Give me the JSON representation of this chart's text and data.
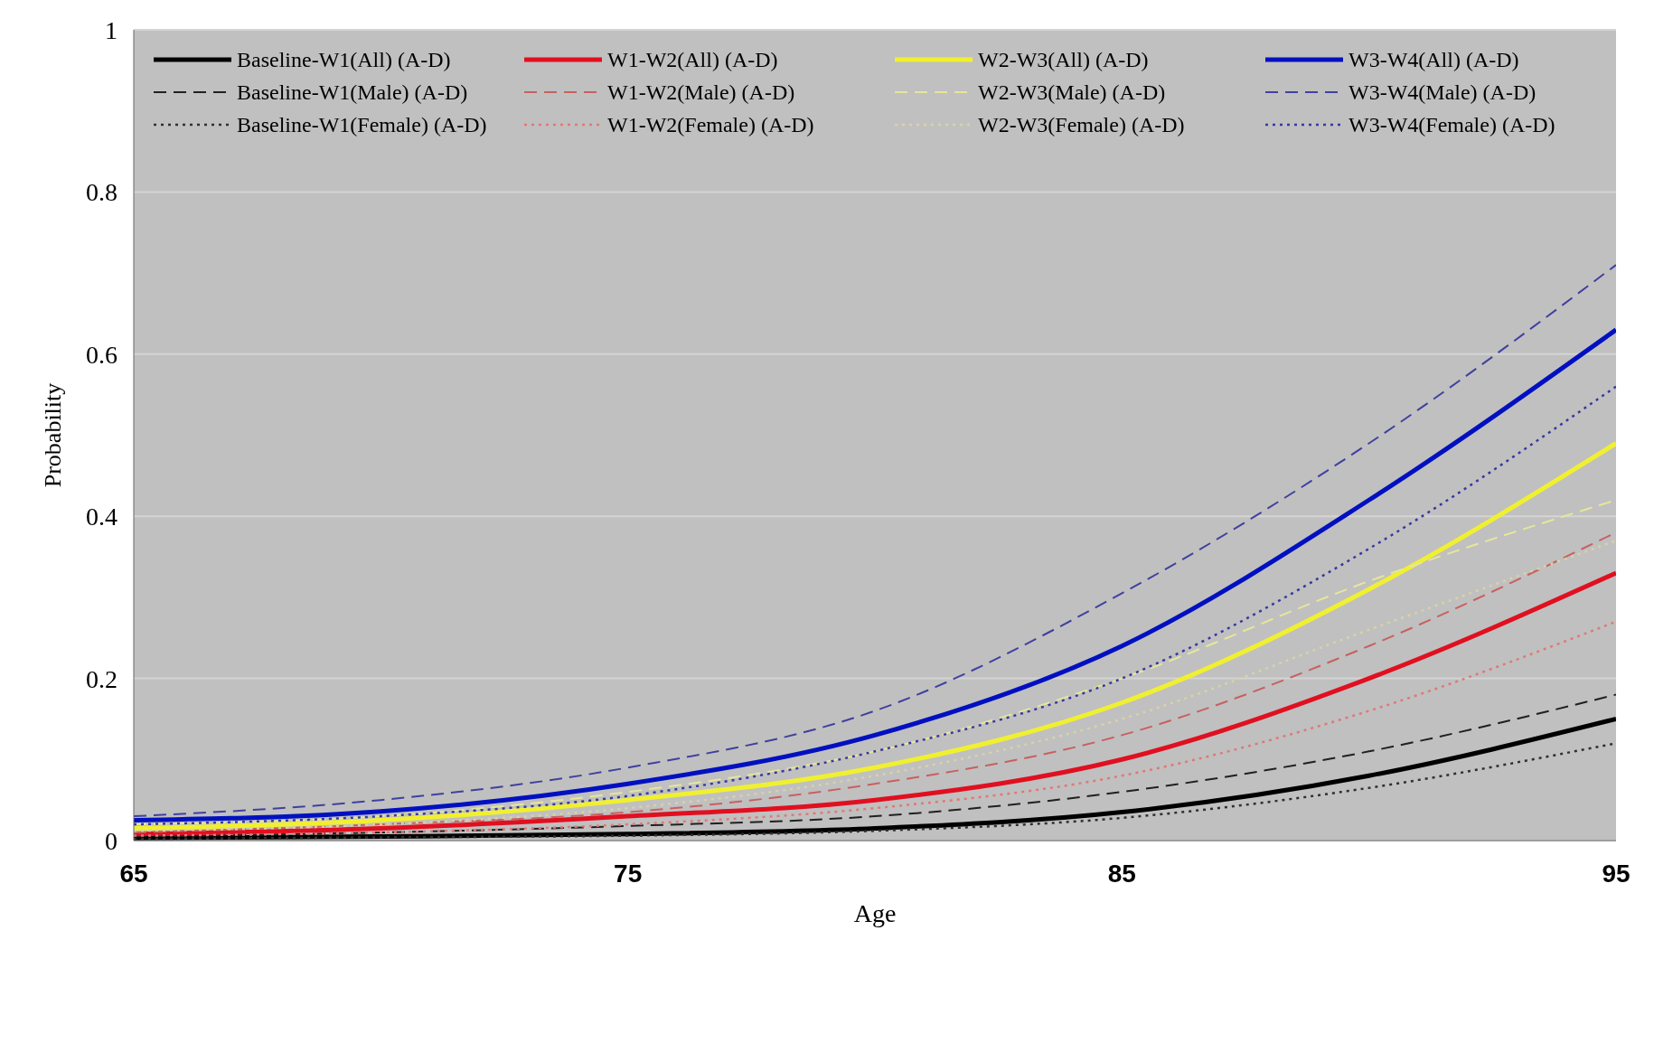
{
  "chart_data": {
    "type": "line",
    "xlabel": "Age",
    "ylabel": "Probability",
    "x": [
      65,
      70,
      75,
      80,
      85,
      90,
      95
    ],
    "xlim": [
      65,
      95
    ],
    "xticks": [
      65,
      75,
      85,
      95
    ],
    "ylim": [
      0,
      1
    ],
    "yticks": [
      0,
      0.2,
      0.4,
      0.6,
      0.8,
      1
    ],
    "grid": "y",
    "legend": "top",
    "marker": "none",
    "series": [
      {
        "name": "Baseline-W1(All) (A-D)",
        "color": "#000000",
        "line_style": "solid",
        "values": [
          0.003,
          0.005,
          0.008,
          0.015,
          0.035,
          0.08,
          0.15
        ]
      },
      {
        "name": "Baseline-W1(Male) (A-D)",
        "color": "#202020",
        "line_style": "dashed",
        "values": [
          0.005,
          0.01,
          0.018,
          0.03,
          0.06,
          0.11,
          0.18
        ]
      },
      {
        "name": "Baseline-W1(Female) (A-D)",
        "color": "#303030",
        "line_style": "dotted",
        "values": [
          0.002,
          0.004,
          0.006,
          0.012,
          0.028,
          0.065,
          0.12
        ]
      },
      {
        "name": "W1-W2(All) (A-D)",
        "color": "#e01020",
        "line_style": "solid",
        "values": [
          0.008,
          0.015,
          0.03,
          0.05,
          0.1,
          0.2,
          0.33
        ]
      },
      {
        "name": "W1-W2(Male) (A-D)",
        "color": "#c86060",
        "line_style": "dashed",
        "values": [
          0.01,
          0.02,
          0.035,
          0.07,
          0.13,
          0.24,
          0.38
        ]
      },
      {
        "name": "W1-W2(Female) (A-D)",
        "color": "#e07878",
        "line_style": "dotted",
        "values": [
          0.006,
          0.01,
          0.02,
          0.04,
          0.08,
          0.16,
          0.27
        ]
      },
      {
        "name": "W2-W3(All) (A-D)",
        "color": "#f0f030",
        "line_style": "solid",
        "values": [
          0.015,
          0.025,
          0.05,
          0.09,
          0.17,
          0.31,
          0.49
        ]
      },
      {
        "name": "W2-W3(Male) (A-D)",
        "color": "#e6e69a",
        "line_style": "dashed",
        "values": [
          0.02,
          0.03,
          0.06,
          0.11,
          0.2,
          0.32,
          0.42
        ]
      },
      {
        "name": "W2-W3(Female) (A-D)",
        "color": "#d8d2a8",
        "line_style": "dotted",
        "values": [
          0.012,
          0.02,
          0.04,
          0.08,
          0.15,
          0.26,
          0.37
        ]
      },
      {
        "name": "W3-W4(All) (A-D)",
        "color": "#0010c0",
        "line_style": "solid",
        "values": [
          0.025,
          0.036,
          0.07,
          0.13,
          0.24,
          0.42,
          0.63
        ]
      },
      {
        "name": "W3-W4(Male) (A-D)",
        "color": "#4040a0",
        "line_style": "dashed",
        "values": [
          0.03,
          0.05,
          0.09,
          0.16,
          0.305,
          0.49,
          0.71
        ]
      },
      {
        "name": "W3-W4(Female) (A-D)",
        "color": "#3838a0",
        "line_style": "dotted",
        "values": [
          0.02,
          0.03,
          0.055,
          0.11,
          0.2,
          0.36,
          0.56
        ]
      }
    ]
  }
}
